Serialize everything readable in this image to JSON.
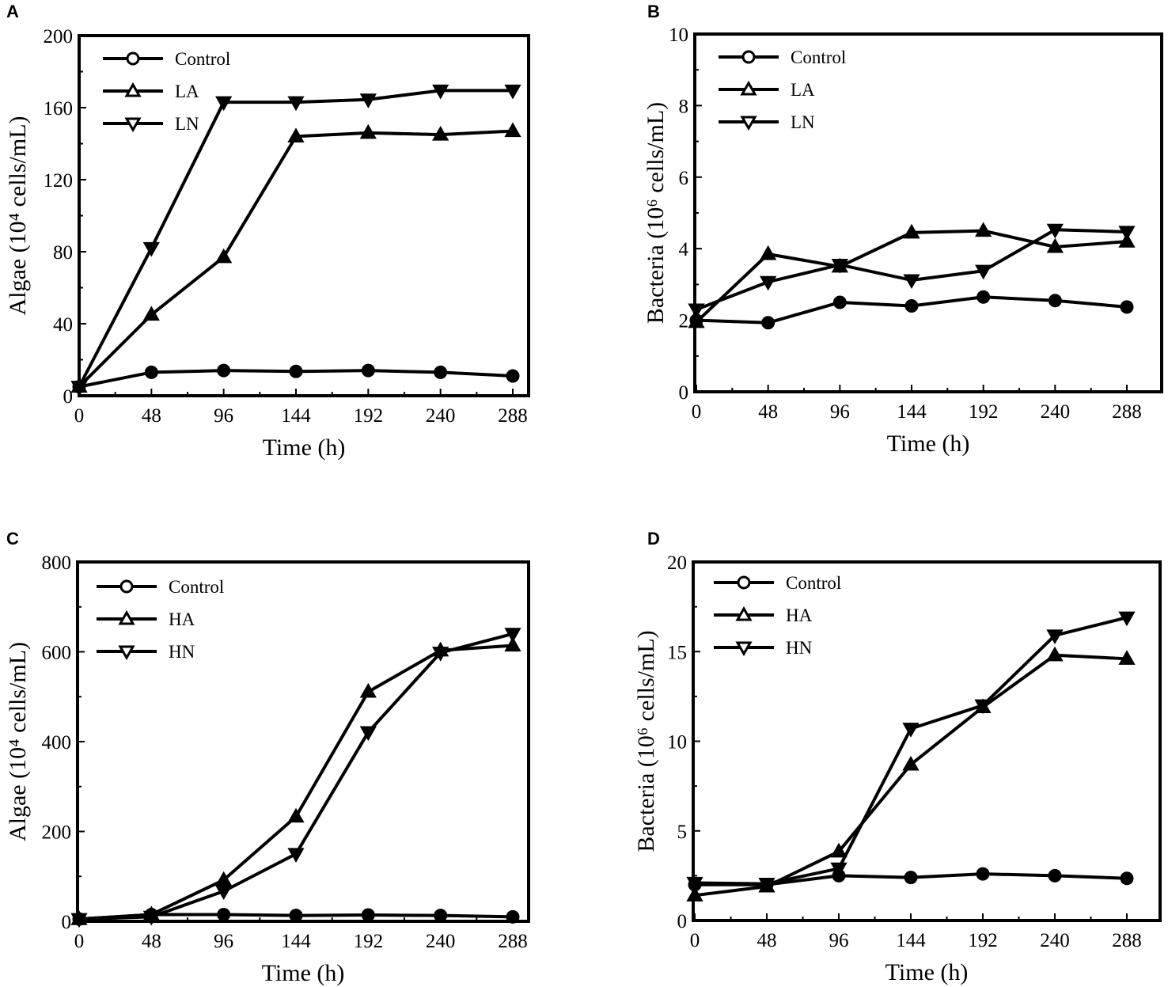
{
  "chart_data": [
    {
      "type": "line",
      "panel": "A",
      "xlabel": "Time (h)",
      "ylabel": "Algae (10⁴ cells/mL)",
      "x": [
        0,
        48,
        96,
        144,
        192,
        240,
        288
      ],
      "xticks": [
        0,
        48,
        96,
        144,
        192,
        240,
        288
      ],
      "yticks": [
        0,
        40,
        80,
        120,
        160,
        200
      ],
      "xlim": [
        0,
        300
      ],
      "ylim": [
        0,
        200
      ],
      "legend_position": "top-left",
      "series": [
        {
          "name": "Control",
          "marker": "circle",
          "values": [
            5,
            13,
            14,
            13.5,
            14,
            13,
            11
          ]
        },
        {
          "name": "LA",
          "marker": "triangle-up",
          "values": [
            5,
            45,
            77,
            144,
            146,
            145,
            147
          ]
        },
        {
          "name": "LN",
          "marker": "triangle-down",
          "values": [
            5,
            82,
            163,
            163,
            164.5,
            169.5,
            169.5
          ]
        }
      ]
    },
    {
      "type": "line",
      "panel": "B",
      "xlabel": "Time (h)",
      "ylabel": "Bacteria (10⁶ cells/mL)",
      "x": [
        0,
        48,
        96,
        144,
        192,
        240,
        288
      ],
      "xticks": [
        0,
        48,
        96,
        144,
        192,
        240,
        288
      ],
      "yticks": [
        0,
        2,
        4,
        6,
        8,
        10
      ],
      "xlim": [
        0,
        300
      ],
      "ylim": [
        0,
        10
      ],
      "legend_position": "top-left",
      "series": [
        {
          "name": "Control",
          "marker": "circle",
          "values": [
            2.0,
            1.93,
            2.5,
            2.4,
            2.65,
            2.55,
            2.37
          ]
        },
        {
          "name": "LA",
          "marker": "triangle-up",
          "values": [
            1.95,
            3.85,
            3.5,
            4.45,
            4.5,
            4.05,
            4.2
          ]
        },
        {
          "name": "LN",
          "marker": "triangle-down",
          "values": [
            2.3,
            3.07,
            3.55,
            3.12,
            3.38,
            4.53,
            4.47
          ]
        }
      ]
    },
    {
      "type": "line",
      "panel": "C",
      "xlabel": "Time (h)",
      "ylabel": "Algae (10⁴ cells/mL)",
      "x": [
        0,
        48,
        96,
        144,
        192,
        240,
        288
      ],
      "xticks": [
        0,
        48,
        96,
        144,
        192,
        240,
        288
      ],
      "yticks": [
        0,
        200,
        400,
        600,
        800
      ],
      "xlim": [
        0,
        300
      ],
      "ylim": [
        0,
        800
      ],
      "legend_position": "top-left",
      "series": [
        {
          "name": "Control",
          "marker": "circle",
          "values": [
            5,
            15,
            15,
            13,
            14,
            13,
            10
          ]
        },
        {
          "name": "HA",
          "marker": "triangle-up",
          "values": [
            5,
            15,
            92,
            233,
            511,
            603,
            614
          ]
        },
        {
          "name": "HN",
          "marker": "triangle-down",
          "values": [
            5,
            10,
            67,
            150,
            421,
            598,
            640
          ]
        }
      ]
    },
    {
      "type": "line",
      "panel": "D",
      "xlabel": "Time (h)",
      "ylabel": "Bacteria (10⁶ cells/mL)",
      "x": [
        0,
        48,
        96,
        144,
        192,
        240,
        288
      ],
      "xticks": [
        0,
        48,
        96,
        144,
        192,
        240,
        288
      ],
      "yticks": [
        0,
        5,
        10,
        15,
        20
      ],
      "xlim": [
        0,
        300
      ],
      "ylim": [
        0,
        20
      ],
      "legend_position": "top-left",
      "series": [
        {
          "name": "Control",
          "marker": "circle",
          "values": [
            2.0,
            2.0,
            2.5,
            2.4,
            2.6,
            2.5,
            2.35
          ]
        },
        {
          "name": "HA",
          "marker": "triangle-up",
          "values": [
            1.4,
            1.9,
            3.85,
            8.7,
            11.9,
            14.8,
            14.6
          ]
        },
        {
          "name": "HN",
          "marker": "triangle-down",
          "values": [
            2.1,
            2.05,
            2.9,
            10.7,
            12.0,
            15.9,
            16.9
          ]
        }
      ]
    }
  ]
}
